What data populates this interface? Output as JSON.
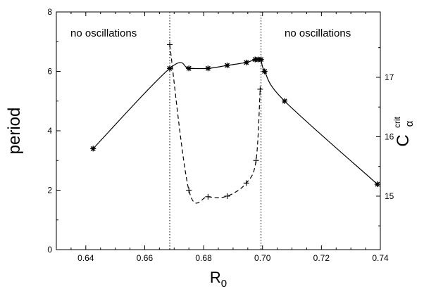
{
  "chart_data": {
    "type": "line",
    "title": "",
    "xlabel": "R",
    "xlabel_sub": "0",
    "ylabel": "period",
    "y2label": "C",
    "y2label_sup": "crit",
    "y2label_sub": "α",
    "xlim": [
      0.63,
      0.74
    ],
    "ylim": [
      0,
      8
    ],
    "y2lim": [
      14.1,
      18.1
    ],
    "x_ticks": [
      "0.64",
      "0.66",
      "0.68",
      "0.70",
      "0.72",
      "0.74"
    ],
    "y_ticks": [
      "0",
      "2",
      "4",
      "6",
      "8"
    ],
    "y2_ticks": [
      "15",
      "16",
      "17"
    ],
    "grid": false,
    "legend": "none",
    "colors": {
      "line": "#000000",
      "background": "#ffffff"
    },
    "vlines": [
      0.6685,
      0.6995
    ],
    "annotations": [
      "no oscillations",
      "no oscillations"
    ],
    "series": [
      {
        "axis": "left",
        "style": "solid",
        "marker": "asterisk",
        "x": [
          0.6425,
          0.6685,
          0.675,
          0.6815,
          0.688,
          0.6945,
          0.6975,
          0.6985,
          0.6995,
          0.7007,
          0.7075,
          0.739
        ],
        "y": [
          3.4,
          6.1,
          6.1,
          6.1,
          6.2,
          6.3,
          6.4,
          6.4,
          6.4,
          6.0,
          5.0,
          2.2
        ]
      },
      {
        "axis": "right",
        "style": "dashed",
        "marker": "plus",
        "x": [
          0.6685,
          0.675,
          0.6815,
          0.688,
          0.6945,
          0.6978,
          0.6992
        ],
        "y": [
          17.55,
          15.1,
          14.99,
          15.0,
          15.22,
          15.6,
          16.8
        ]
      }
    ]
  }
}
